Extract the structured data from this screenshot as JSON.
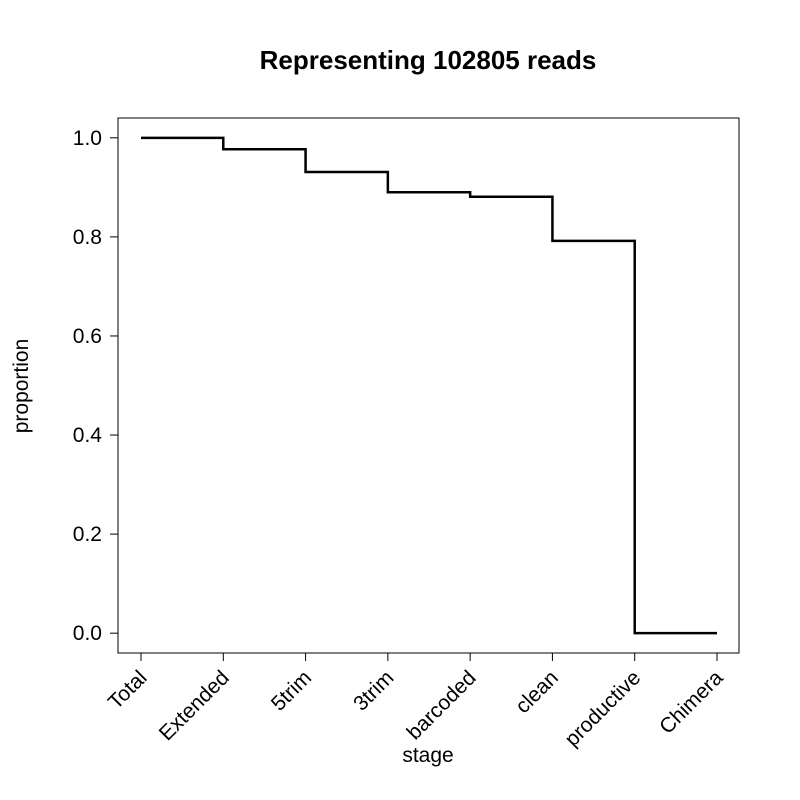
{
  "chart_data": {
    "type": "line",
    "step": true,
    "title": "Representing 102805 reads",
    "xlabel": "stage",
    "ylabel": "proportion",
    "categories": [
      "Total",
      "Extended",
      "5trim",
      "3trim",
      "barcoded",
      "clean",
      "productive",
      "Chimera"
    ],
    "values": [
      1.0,
      0.977,
      0.931,
      0.89,
      0.881,
      0.792,
      0.0,
      0.0
    ],
    "ylim": [
      -0.04,
      1.04
    ],
    "yticks": [
      0.0,
      0.2,
      0.4,
      0.6,
      0.8,
      1.0
    ],
    "ytick_labels": [
      "0.0",
      "0.2",
      "0.4",
      "0.6",
      "0.8",
      "1.0"
    ],
    "grid": false,
    "legend": "none",
    "line_color": "#000000"
  }
}
